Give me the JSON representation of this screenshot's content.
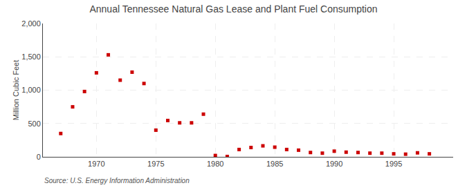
{
  "chart_data": {
    "type": "scatter",
    "title": "Annual Tennessee Natural Gas Lease and Plant Fuel Consumption",
    "ylabel": "Million Cubic Feet",
    "source": "Source: U.S. Energy Information Administration",
    "x": [
      1967,
      1968,
      1969,
      1970,
      1971,
      1972,
      1973,
      1974,
      1975,
      1976,
      1977,
      1978,
      1979,
      1980,
      1981,
      1982,
      1983,
      1984,
      1985,
      1986,
      1987,
      1988,
      1989,
      1990,
      1991,
      1992,
      1993,
      1994,
      1995,
      1996,
      1997,
      1998
    ],
    "values": [
      350,
      750,
      980,
      1260,
      1530,
      1150,
      1270,
      1100,
      400,
      545,
      510,
      510,
      640,
      20,
      5,
      110,
      140,
      165,
      145,
      110,
      100,
      65,
      55,
      85,
      70,
      65,
      55,
      55,
      45,
      40,
      60,
      45
    ],
    "color": "#cc0000",
    "marker": "square",
    "xlim": [
      1965.5,
      2000
    ],
    "ylim": [
      0,
      2000
    ],
    "xticks": [
      1970,
      1975,
      1980,
      1985,
      1990,
      1995
    ],
    "yticks": [
      0,
      500,
      {
        "value": 1000,
        "label": "1,000"
      },
      {
        "value": 1500,
        "label": "1,500"
      },
      {
        "value": 2000,
        "label": "2,000"
      }
    ],
    "grid": true
  }
}
